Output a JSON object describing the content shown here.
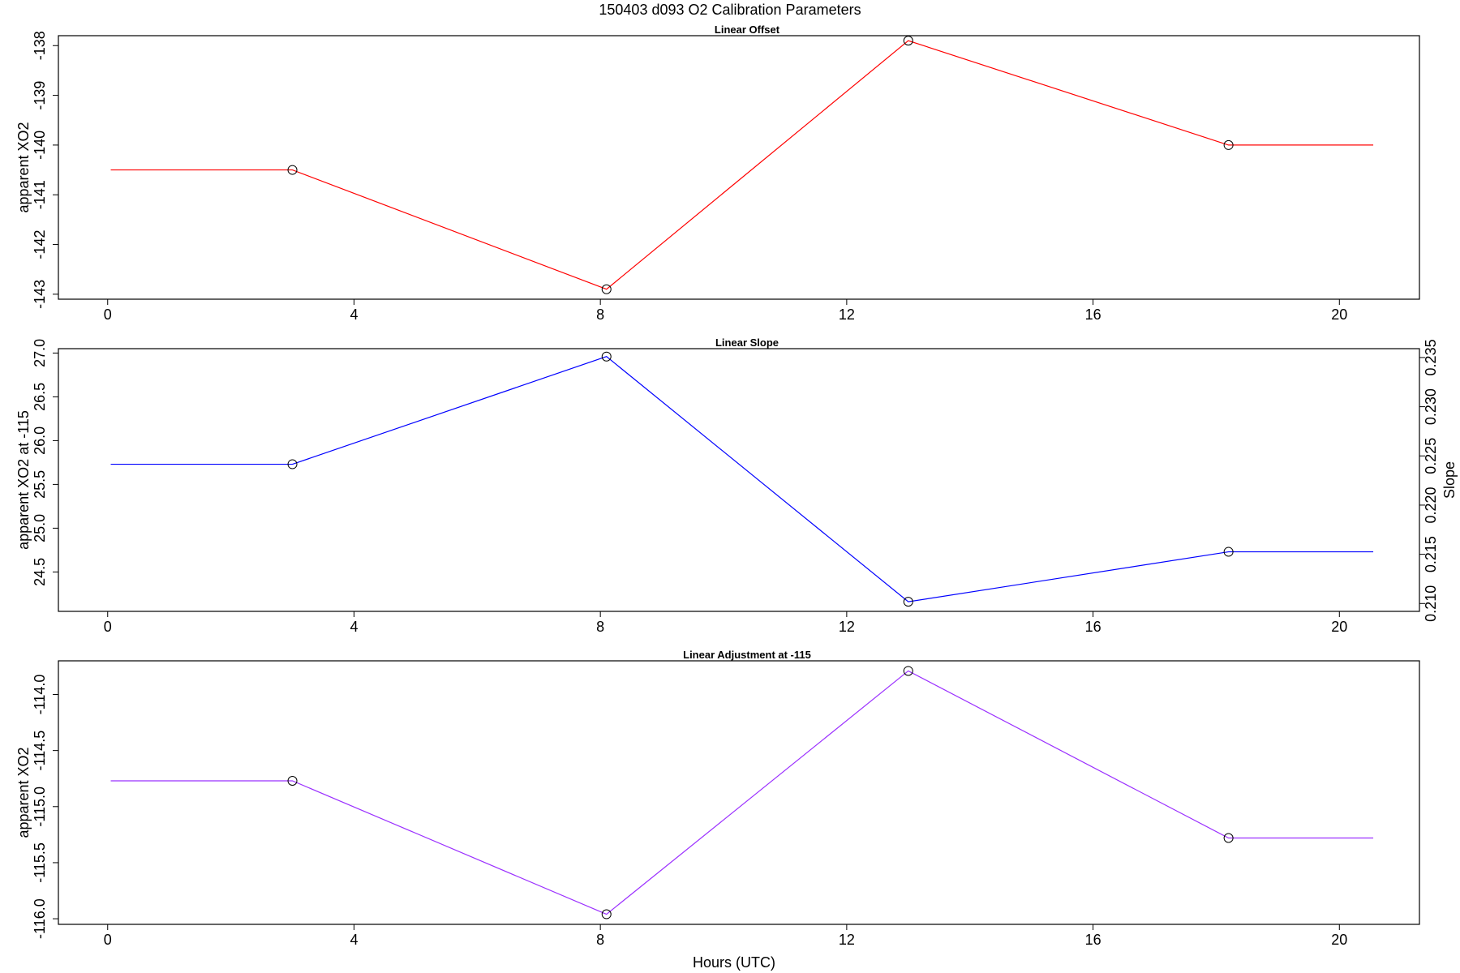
{
  "figure": {
    "title": "150403   d093   O2 Calibration Parameters",
    "xlabel": "Hours (UTC)"
  },
  "chart_data": [
    {
      "type": "line",
      "title": "Linear Offset",
      "ylabel": "apparent XO2",
      "color": "#ff0000",
      "xlim": [
        -0.8,
        21.3
      ],
      "ylim": [
        -143.1,
        -137.8
      ],
      "x_ticks": [
        "0",
        "4",
        "8",
        "12",
        "16",
        "20"
      ],
      "y_ticks": [
        "-143",
        "-142",
        "-141",
        "-140",
        "-139",
        "-138"
      ],
      "x": [
        0.05,
        3.0,
        8.1,
        13.0,
        18.2,
        20.55
      ],
      "y": [
        -140.5,
        -140.5,
        -142.9,
        -137.9,
        -140.0,
        -140.0
      ],
      "markers": [
        false,
        true,
        true,
        true,
        true,
        false
      ]
    },
    {
      "type": "line",
      "title": "Linear Slope",
      "ylabel": "apparent XO2 at -115",
      "y2label": "Slope",
      "color": "#0000ff",
      "xlim": [
        -0.8,
        21.3
      ],
      "ylim": [
        24.05,
        27.05
      ],
      "y2lim": [
        0.2092,
        0.2359
      ],
      "x_ticks": [
        "0",
        "4",
        "8",
        "12",
        "16",
        "20"
      ],
      "y_ticks": [
        "24.5",
        "25.0",
        "25.5",
        "26.0",
        "26.5",
        "27.0"
      ],
      "y2_ticks": [
        "0.210",
        "0.215",
        "0.220",
        "0.225",
        "0.230",
        "0.235"
      ],
      "x": [
        0.05,
        3.0,
        8.1,
        13.0,
        18.2,
        20.55
      ],
      "y": [
        25.73,
        25.73,
        26.96,
        24.16,
        24.73,
        24.73
      ],
      "markers": [
        false,
        true,
        true,
        true,
        true,
        false
      ]
    },
    {
      "type": "line",
      "title": "Linear Adjustment at -115",
      "ylabel": "apparent XO2",
      "color": "#9b30ff",
      "xlim": [
        -0.8,
        21.3
      ],
      "ylim": [
        -116.05,
        -113.7
      ],
      "x_ticks": [
        "0",
        "4",
        "8",
        "12",
        "16",
        "20"
      ],
      "y_ticks": [
        "-116.0",
        "-115.5",
        "-115.0",
        "-114.5",
        "-114.0"
      ],
      "x": [
        0.05,
        3.0,
        8.1,
        13.0,
        18.2,
        20.55
      ],
      "y": [
        -114.77,
        -114.77,
        -115.96,
        -113.79,
        -115.28,
        -115.28
      ],
      "markers": [
        false,
        true,
        true,
        true,
        true,
        false
      ]
    }
  ]
}
